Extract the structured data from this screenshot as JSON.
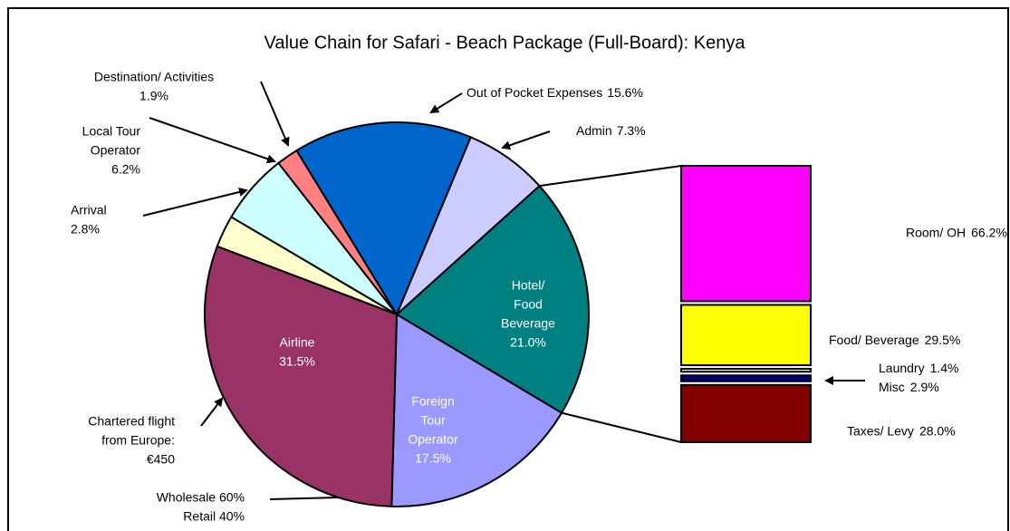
{
  "chart_data": {
    "type": "pie-of-bar",
    "title": "Value Chain for Safari - Beach Package (Full-Board): Kenya",
    "pie": {
      "categories": [
        [
          "Hotel/",
          "Food",
          "Beverage"
        ],
        [
          "Foreign",
          "Tour",
          "Operator"
        ],
        [
          "Airline"
        ],
        [
          "Arrival"
        ],
        [
          "Local Tour",
          "Operator"
        ],
        [
          "Destination/ Activities"
        ],
        [
          "Out of Pocket Expenses"
        ],
        [
          "Admin"
        ]
      ],
      "values": [
        21.0,
        17.5,
        31.5,
        2.8,
        6.2,
        1.9,
        15.6,
        7.3
      ],
      "value_labels": [
        "21.0%",
        "17.5%",
        "31.5%",
        "2.8%",
        "6.2%",
        "1.9%",
        "15.6%",
        "7.3%"
      ],
      "colors": [
        "#008080",
        "#9999ff",
        "#993366",
        "#ffffcc",
        "#ccffff",
        "#ff8080",
        "#0066cc",
        "#ccccff"
      ]
    },
    "bar": {
      "categories": [
        "Room/ OH",
        "Food/ Beverage",
        "Laundry",
        "Misc",
        "Taxes/ Levy"
      ],
      "values": [
        66.2,
        29.5,
        1.4,
        2.9,
        28.0
      ],
      "value_labels": [
        "66.2%",
        "29.5%",
        "1.4%",
        "2.9%",
        "28.0%"
      ],
      "colors": [
        "#ff00ff",
        "#ffff00",
        "#ffffff",
        "#000080",
        "#800000"
      ]
    },
    "annotations": [
      [
        "Chartered flight",
        "from Europe:",
        "€450"
      ],
      [
        "Wholesale 60%",
        "Retail 40%"
      ]
    ]
  }
}
